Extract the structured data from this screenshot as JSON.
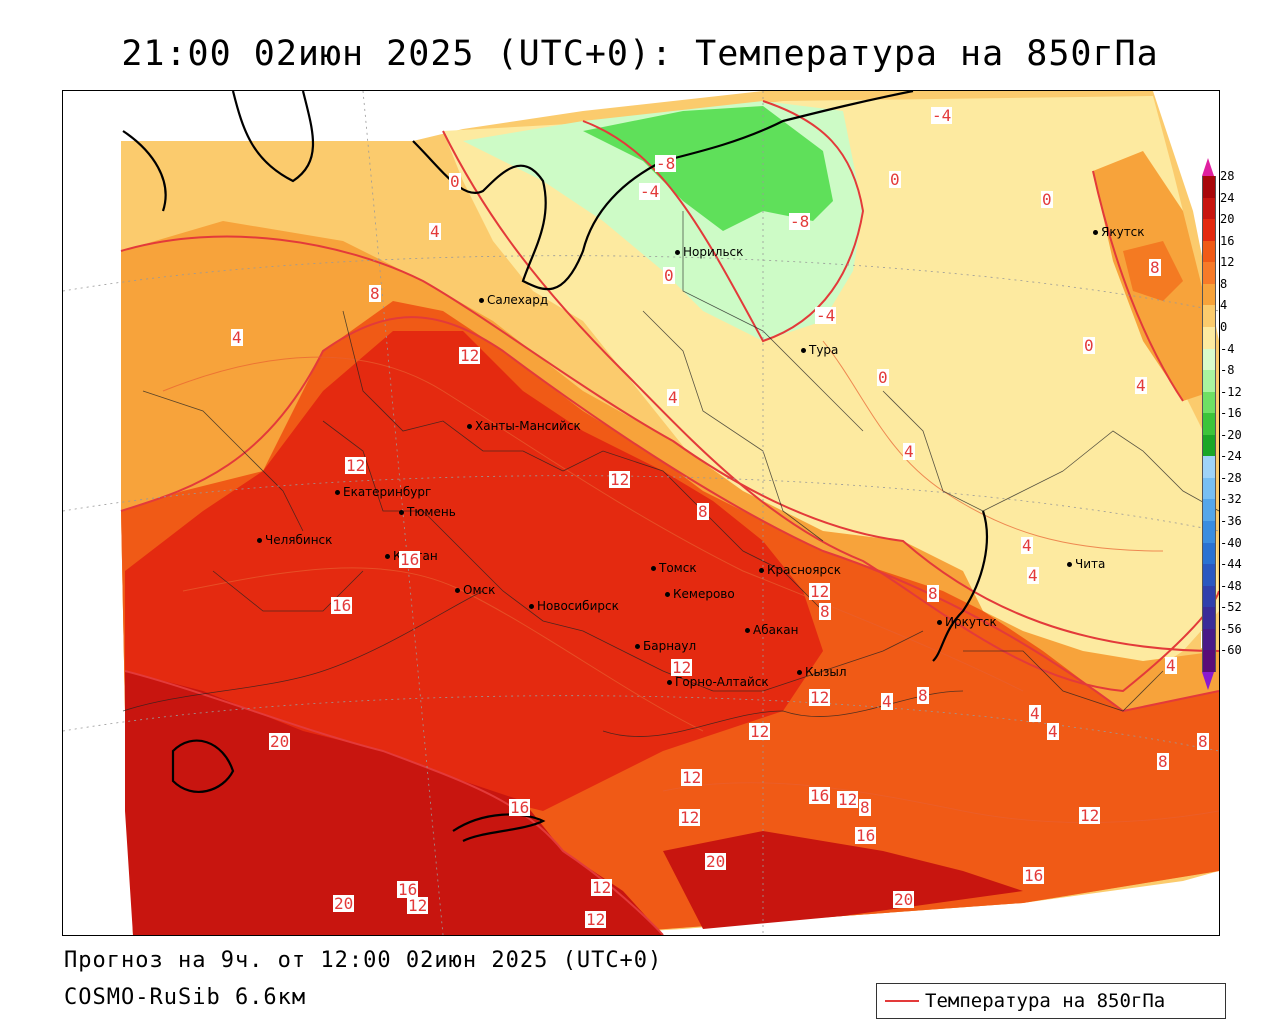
{
  "title": "21:00 02июн 2025 (UTC+0): Температура на 850гПа",
  "forecast_line": "Прогноз на 9ч. от 12:00 02июн 2025 (UTC+0)",
  "model_line": "COSMO-RuSib 6.6км",
  "legend_box_label": "Температура на 850гПа",
  "colors": {
    "contour": "#e33a3a",
    "deep_red": "#c8150f",
    "red": "#e42a10",
    "orange_red": "#f05a16",
    "orange": "#f7a33b",
    "light_orange": "#fbcb6d",
    "yellow": "#fdeaa0",
    "light_green": "#cdfbc6",
    "green": "#5fe05a"
  },
  "cities": [
    {
      "name": "Норильск"
    },
    {
      "name": "Якутск"
    },
    {
      "name": "Салехард"
    },
    {
      "name": "Тура"
    },
    {
      "name": "Ханты-Мансийск"
    },
    {
      "name": "Екатеринбург"
    },
    {
      "name": "Тюмень"
    },
    {
      "name": "Челябинск"
    },
    {
      "name": "Курган"
    },
    {
      "name": "Омск"
    },
    {
      "name": "Новосибирск"
    },
    {
      "name": "Томск"
    },
    {
      "name": "Кемерово"
    },
    {
      "name": "Красноярск"
    },
    {
      "name": "Барнаул"
    },
    {
      "name": "Абакан"
    },
    {
      "name": "Горно-Алтайск"
    },
    {
      "name": "Кызыл"
    },
    {
      "name": "Иркутск"
    },
    {
      "name": "Чита"
    }
  ],
  "contour_labels": [
    "-4",
    "-8",
    "-4",
    "-8",
    "0",
    "0",
    "0",
    "-4",
    "0",
    "0",
    "4",
    "8",
    "8",
    "4",
    "12",
    "4",
    "0",
    "12",
    "12",
    "8",
    "4",
    "16",
    "16",
    "12",
    "8",
    "4",
    "4",
    "8",
    "4",
    "8",
    "4",
    "4",
    "4",
    "20",
    "12",
    "12",
    "12",
    "4",
    "8",
    "8",
    "8",
    "16",
    "12",
    "8",
    "12",
    "16",
    "12",
    "16",
    "20",
    "16",
    "20",
    "16",
    "12",
    "12",
    "12",
    "20",
    "12"
  ],
  "legend_scale": {
    "ticks": [
      "28",
      "24",
      "20",
      "16",
      "12",
      "8",
      "4",
      "0",
      "-4",
      "-8",
      "-12",
      "-16",
      "-20",
      "-24",
      "-28",
      "-32",
      "-36",
      "-40",
      "-44",
      "-48",
      "-52",
      "-56",
      "-60"
    ],
    "colors": [
      "#a8070a",
      "#c8150f",
      "#e42a10",
      "#f05a16",
      "#f77a28",
      "#f7a33b",
      "#fbcb6d",
      "#fdeaa0",
      "#d9fbcc",
      "#a9f49f",
      "#6fe064",
      "#3cc43a",
      "#1aa626",
      "#9fd3f7",
      "#78bff2",
      "#55a6ea",
      "#3a8de0",
      "#2a72d2",
      "#2a58c0",
      "#3040ac",
      "#3a2c98",
      "#4a1a88",
      "#5a0c78"
    ]
  }
}
